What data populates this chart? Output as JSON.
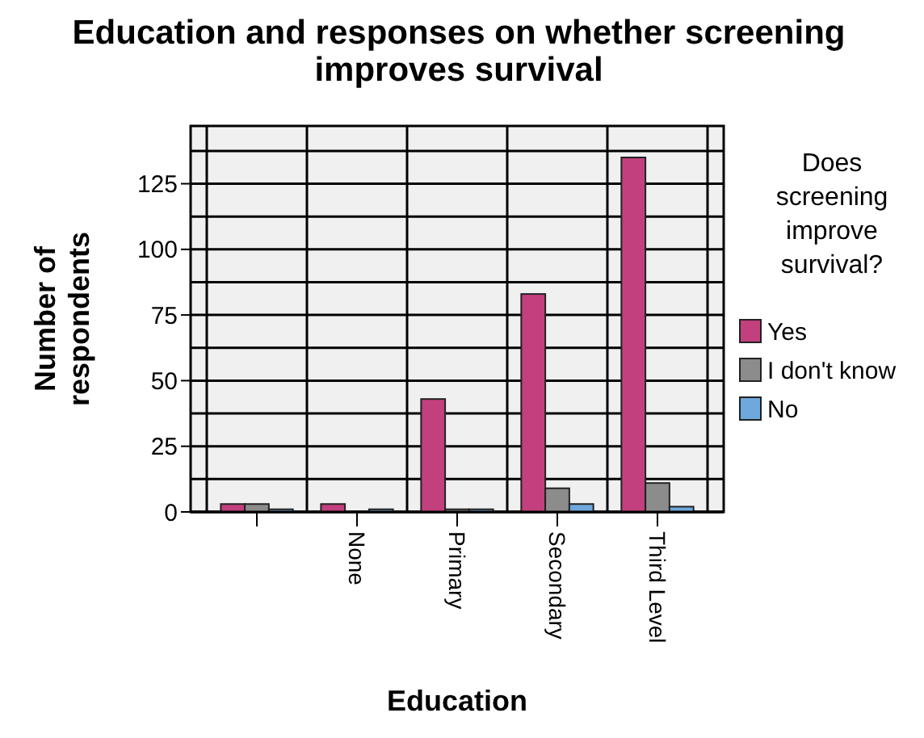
{
  "chart_data": {
    "type": "bar",
    "title": "Education and responses on whether screening improves survival",
    "xlabel": "Education",
    "ylabel": "Number of respondents",
    "legend_title": "Does screening improve survival?",
    "categories": [
      null,
      "None",
      "Primary",
      "Secondary",
      "Third Level"
    ],
    "series": [
      {
        "name": "Yes",
        "color": "#c2407e",
        "values": [
          3,
          3,
          43,
          83,
          135
        ]
      },
      {
        "name": "I don't know",
        "color": "#8c8c8c",
        "values": [
          3,
          0,
          1,
          9,
          11
        ]
      },
      {
        "name": "No",
        "color": "#6fa8dc",
        "values": [
          1,
          1,
          1,
          3,
          2
        ]
      }
    ],
    "ylim": [
      0,
      147
    ],
    "yticks": [
      0,
      {
        "value": 12.5,
        "label": null
      },
      25,
      {
        "value": 37.5,
        "label": null
      },
      50,
      {
        "value": 62.5,
        "label": null
      },
      75,
      {
        "value": 87.5,
        "label": null
      },
      100,
      {
        "value": 112.5,
        "label": null
      },
      125,
      {
        "value": 137.5,
        "label": null
      }
    ],
    "grid": true,
    "legend": "right"
  }
}
